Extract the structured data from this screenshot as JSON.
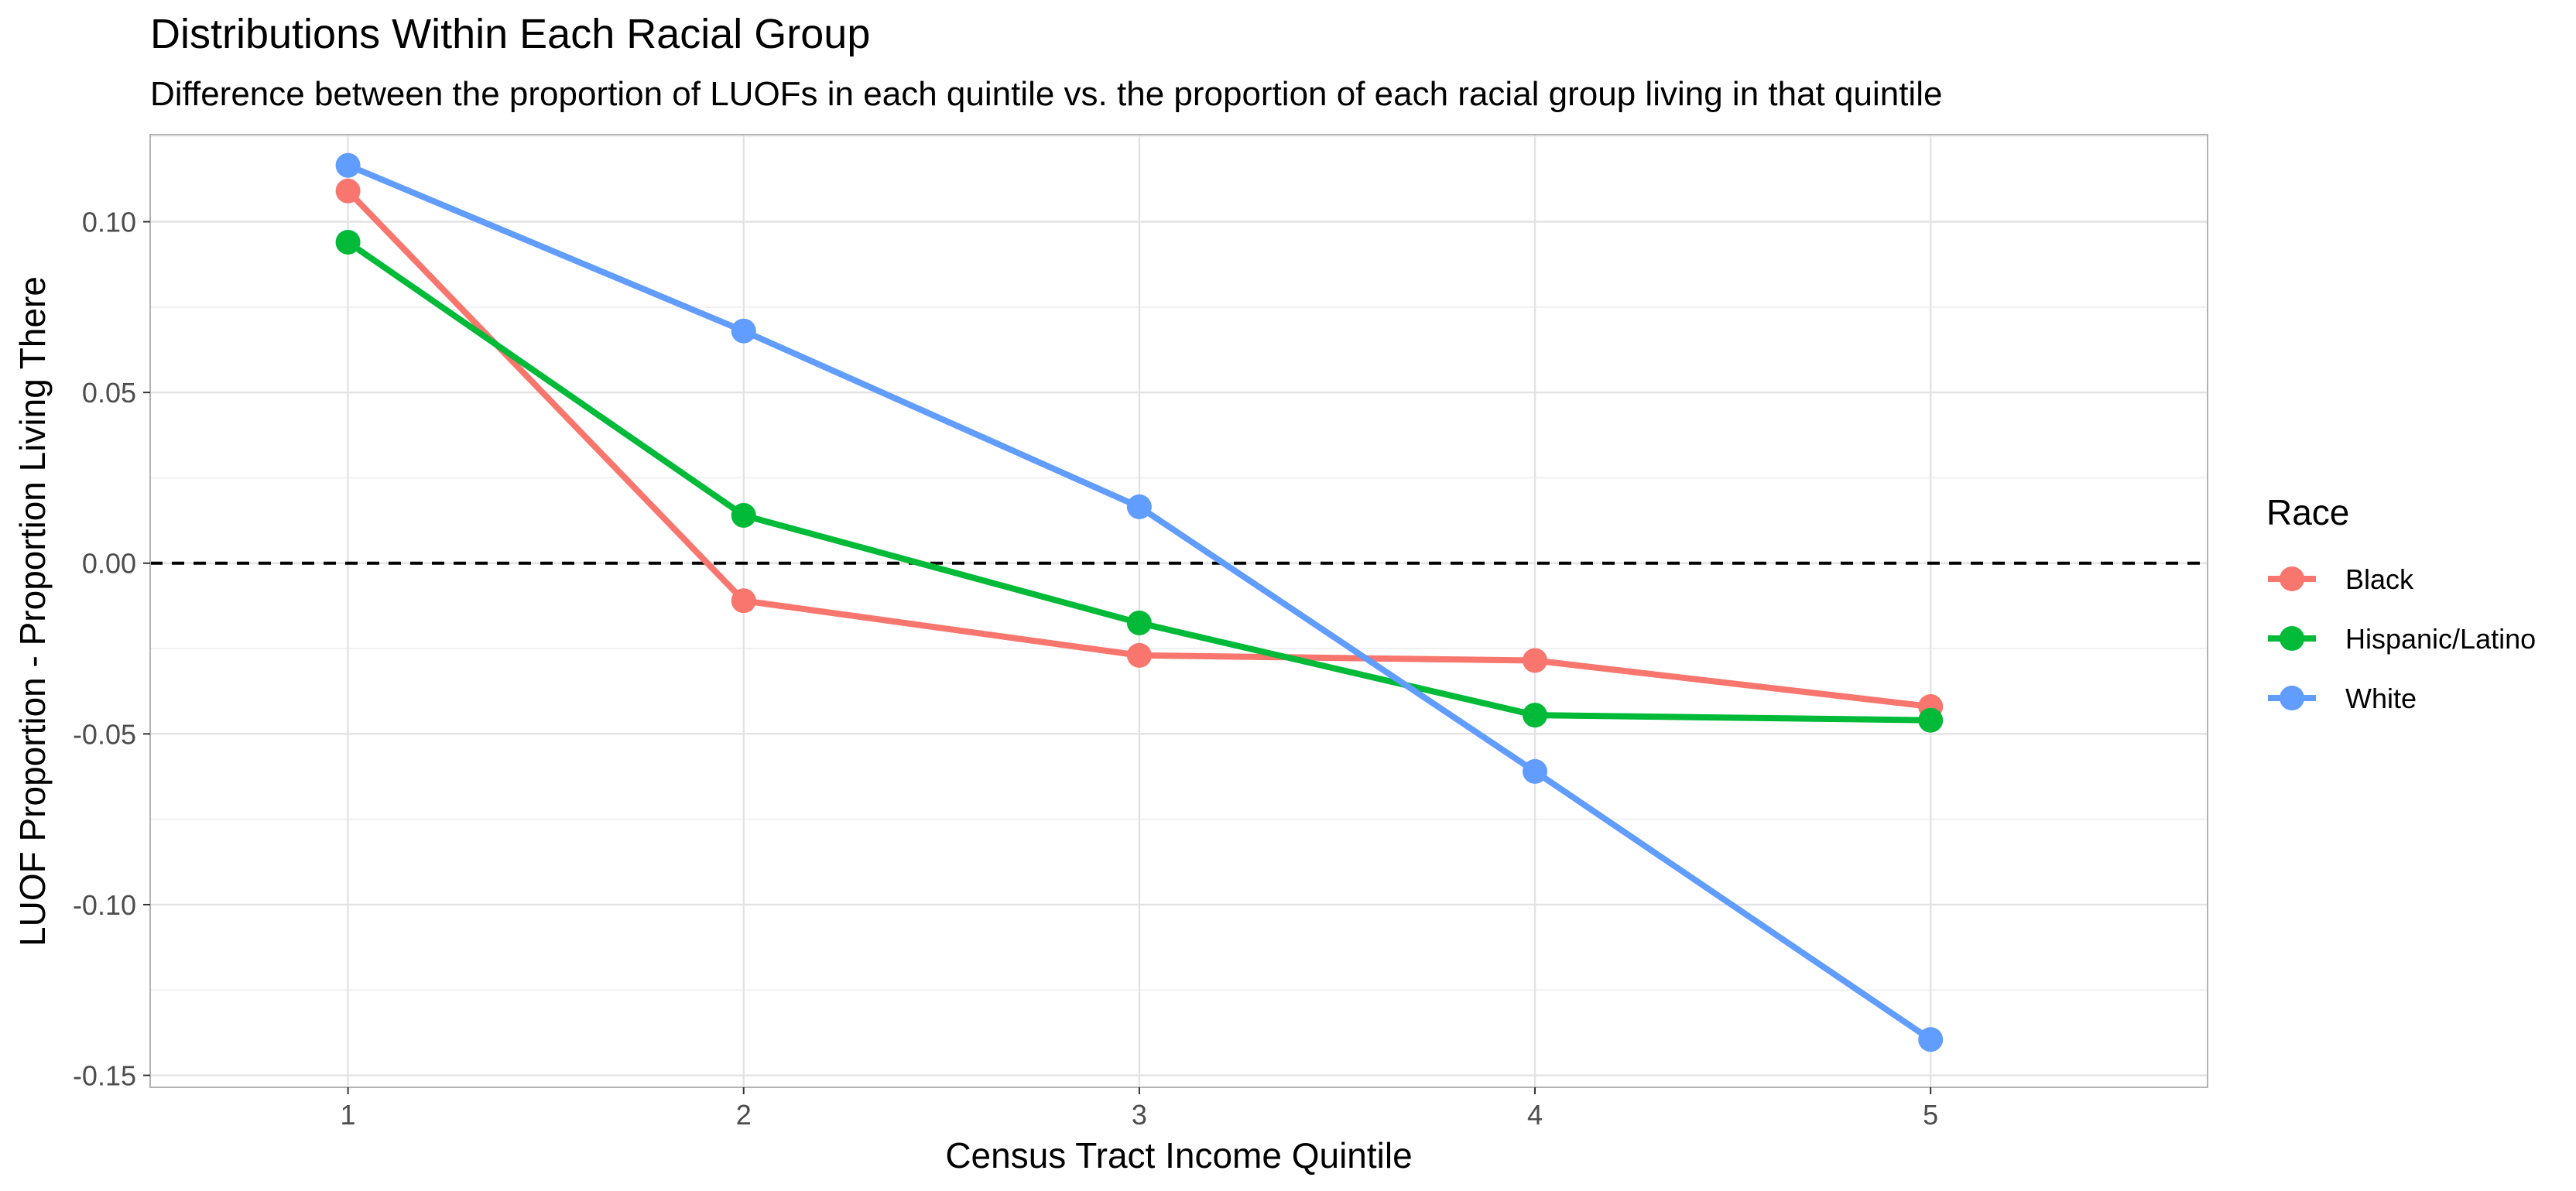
{
  "chart_data": {
    "type": "line",
    "title": "Distributions Within Each Racial Group",
    "subtitle": "Difference between the proportion of LUOFs in each quintile vs. the proportion of each racial group living in that quintile",
    "xlabel": "Census Tract Income Quintile",
    "ylabel": "LUOF Proportion - Proportion Living There",
    "x": [
      1,
      2,
      3,
      4,
      5
    ],
    "xticks": [
      "1",
      "2",
      "3",
      "4",
      "5"
    ],
    "xlim": [
      0.5,
      5.7
    ],
    "ylim": [
      -0.1535,
      0.1255
    ],
    "yticks": [
      0.1,
      0.05,
      0.0,
      -0.05,
      -0.1,
      -0.15
    ],
    "ytick_labels": [
      "0.10",
      "0.05",
      "0.00",
      "-0.05",
      "-0.10",
      "-0.15"
    ],
    "reference_line": {
      "y": 0,
      "style": "dashed",
      "color": "#000000"
    },
    "grid": true,
    "legend": {
      "title": "Race",
      "position": "right"
    },
    "series": [
      {
        "name": "Black",
        "color": "#F8766D",
        "values": [
          0.109,
          -0.011,
          -0.027,
          -0.0285,
          -0.042
        ]
      },
      {
        "name": "Hispanic/Latino",
        "color": "#00BA38",
        "values": [
          0.094,
          0.014,
          -0.0175,
          -0.0445,
          -0.046
        ]
      },
      {
        "name": "White",
        "color": "#619CFF",
        "values": [
          0.1165,
          0.068,
          0.0165,
          -0.061,
          -0.1395
        ]
      }
    ]
  }
}
